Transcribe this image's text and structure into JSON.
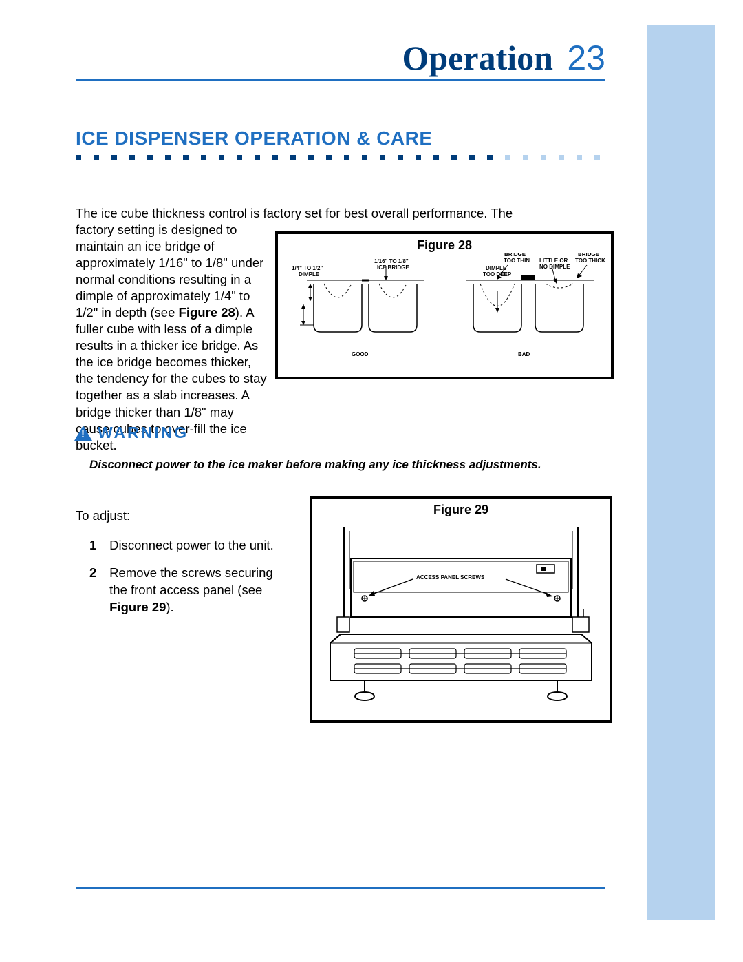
{
  "header": {
    "title": "Operation",
    "page_number": "23",
    "rule_color": "#1f6fc1",
    "title_color": "#003c7a"
  },
  "section": {
    "title": "ICE DISPENSER OPERATION & CARE",
    "dot_count_dark": 24,
    "dot_count_light": 6
  },
  "intro": {
    "line1": "The ice cube thickness control is factory set for best overall performance. The",
    "wrap": "factory setting is designed to maintain an ice bridge of approximately 1/16\" to 1/8\" under normal conditions resulting in a dimple of approximately 1/4\" to 1/2\" in depth (see Figure 28). A fuller cube with less of a dimple results in a thicker ice bridge. As the ice bridge becomes thicker, the tendency for the cubes to stay together as a slab increases. A bridge thicker than 1/8\" may cause cubes to over-fill the ice bucket."
  },
  "fig28": {
    "caption": "Figure 28",
    "labels": {
      "dimple": "1/4\" TO 1/2\"\nDIMPLE",
      "bridge": "1/16\" TO 1/8\"\nICE BRIDGE",
      "bridge_thin": "BRIDGE\nTOO THIN",
      "dimple_deep": "DIMPLE\nTOO DEEP",
      "little_dimple": "LITTLE OR\nNO DIMPLE",
      "bridge_thick": "BRIDGE\nTOO THICK",
      "good": "GOOD",
      "bad": "BAD"
    }
  },
  "warning": {
    "label": "WARNING",
    "body": "Disconnect power to the ice maker before making any ice thickness adjustments."
  },
  "adjust": {
    "intro": "To adjust:",
    "steps": [
      {
        "n": "1",
        "t": "Disconnect power to the unit."
      },
      {
        "n": "2",
        "t": "Remove the screws securing the front access panel (see Figure 29)."
      }
    ]
  },
  "fig29": {
    "caption": "Figure 29",
    "label": "ACCESS PANEL SCREWS"
  }
}
